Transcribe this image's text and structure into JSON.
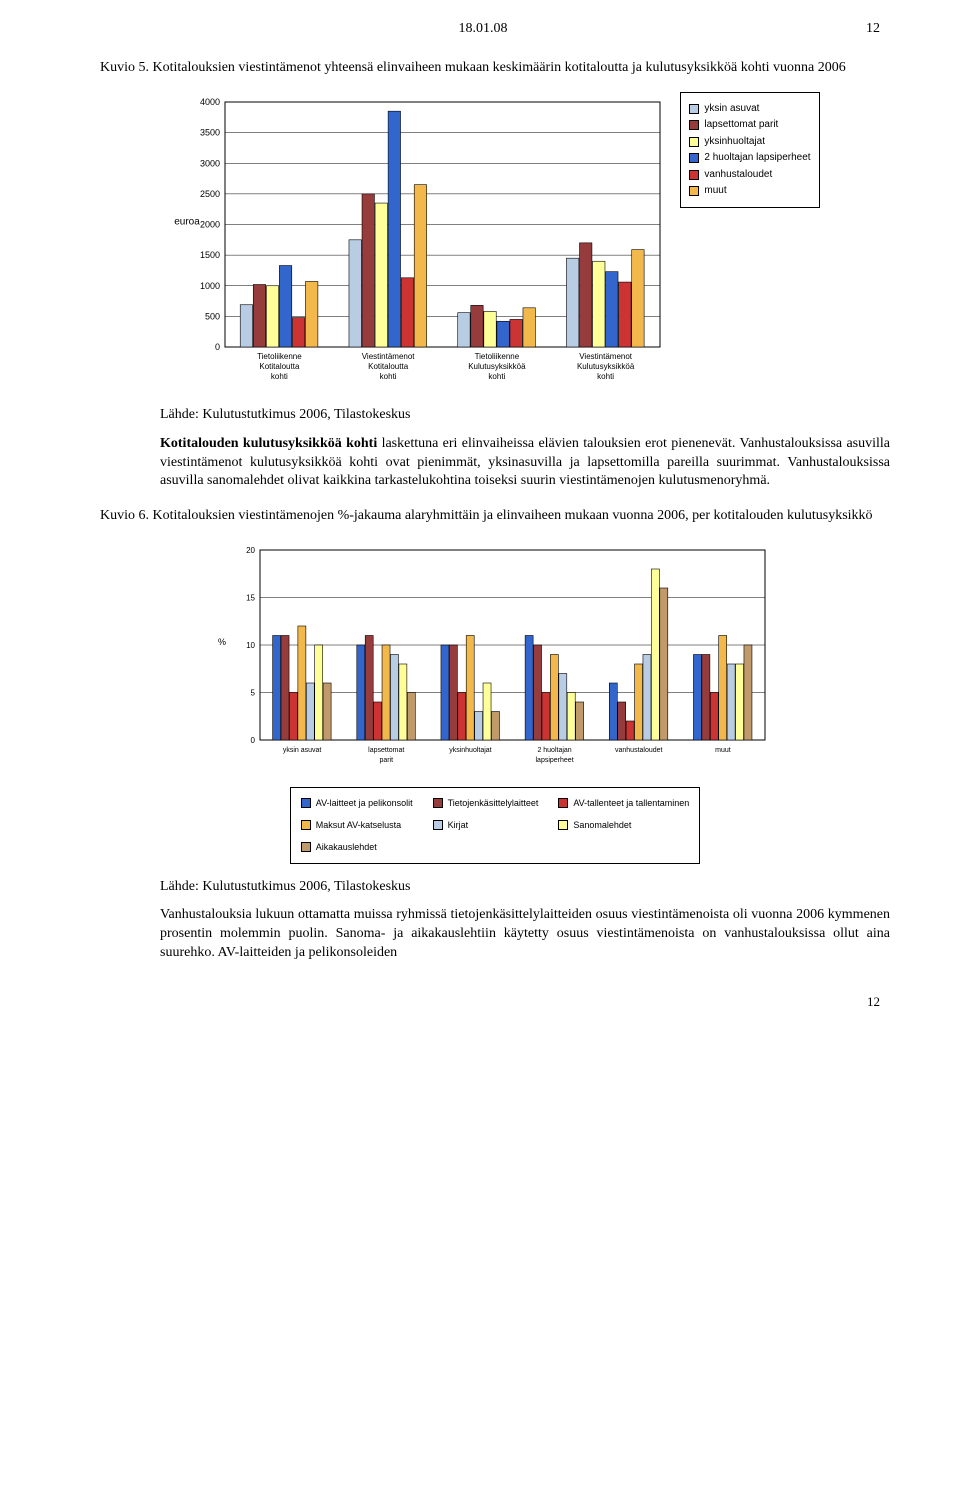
{
  "header": {
    "date": "18.01.08",
    "page_top": "12"
  },
  "footer": {
    "page_bottom": "12"
  },
  "chart1": {
    "caption": "Kuvio 5. Kotitalouksien viestintämenot yhteensä elinvaiheen mukaan keskimäärin kotitaloutta ja kulutusyksikköä kohti vuonna 2006",
    "type": "grouped-bar",
    "y_label": "euroa",
    "ylim": [
      0,
      4000
    ],
    "ytick_step": 500,
    "yticks": [
      "0",
      "500",
      "1000",
      "1500",
      "2000",
      "2500",
      "3000",
      "3500",
      "4000"
    ],
    "chart_border": "#000000",
    "grid_color": "#000000",
    "background_color": "#ffffff",
    "axis_fontsize": 9,
    "series_labels": [
      "yksin asuvat",
      "lapsettomat parit",
      "yksinhuoltajat",
      "2 huoltajan lapsiperheet",
      "vanhustaloudet",
      "muut"
    ],
    "series_colors": [
      "#b8cce4",
      "#963c3c",
      "#ffff99",
      "#3366cc",
      "#cc3333",
      "#f2b84b"
    ],
    "category_labels": [
      "Tietoliikenne Kotitaloutta kohti",
      "Viestintämenot Kotitaloutta kohti",
      "Tietoliikenne Kulutusyksikköä kohti",
      "Viestintämenot Kulutusyksikköä kohti"
    ],
    "data": [
      [
        690,
        1020,
        1000,
        1330,
        480,
        1070
      ],
      [
        1750,
        2500,
        2350,
        3850,
        1130,
        2650
      ],
      [
        560,
        680,
        580,
        420,
        450,
        640
      ],
      [
        1450,
        1700,
        1400,
        1230,
        1060,
        1590
      ]
    ],
    "bar_width": 0.12,
    "source": "Lähde: Kulutustutkimus 2006, Tilastokeskus",
    "paragraph_bold": "Kotitalouden kulutusyksikköä kohti",
    "paragraph": " laskettuna eri elinvaiheissa elävien talouksien erot pienenevät. Vanhustalouksissa asuvilla viestintämenot kulutusyksikköä kohti ovat pienimmät, yksinasuvilla ja lapsettomilla pareilla suurimmat. Vanhustalouksissa asuvilla sanomalehdet olivat kaikkina tarkastelukohtina toiseksi suurin viestintämenojen kulutusmenoryhmä."
  },
  "chart2": {
    "caption": "Kuvio 6. Kotitalouksien viestintämenojen %-jakauma alaryhmittäin ja elinvaiheen mukaan vuonna 2006, per kotitalouden kulutusyksikkö",
    "type": "grouped-bar",
    "y_label": "%",
    "ylim": [
      0,
      20
    ],
    "ytick_step": 5,
    "yticks": [
      "0",
      "5",
      "10",
      "15",
      "20"
    ],
    "chart_border": "#000000",
    "grid_color": "#000000",
    "background_color": "#ffffff",
    "axis_fontsize": 8,
    "category_labels": [
      "yksin asuvat",
      "lapsettomat parit",
      "yksinhuoltajat",
      "2 huoltajan lapsiperheet",
      "vanhustaloudet",
      "muut"
    ],
    "series_labels": [
      "AV-laitteet ja pelikonsolit",
      "Tietojenkäsittelylaitteet",
      "AV-tallenteet ja tallentaminen",
      "Maksut AV-katselusta",
      "Kirjat",
      "Sanomalehdet",
      "Aikakauslehdet"
    ],
    "series_colors": [
      "#3366cc",
      "#963c3c",
      "#cc3333",
      "#f2b84b",
      "#b8cce4",
      "#ffff99",
      "#c19a6b"
    ],
    "data": [
      [
        11,
        11,
        5,
        12,
        6,
        10,
        6
      ],
      [
        10,
        11,
        4,
        10,
        9,
        8,
        5
      ],
      [
        10,
        10,
        5,
        11,
        3,
        6,
        3
      ],
      [
        11,
        10,
        5,
        9,
        7,
        5,
        4
      ],
      [
        6,
        4,
        2,
        8,
        9,
        18,
        16
      ],
      [
        9,
        9,
        5,
        11,
        8,
        8,
        10
      ]
    ],
    "bar_width": 0.1,
    "source": "Lähde: Kulutustutkimus 2006, Tilastokeskus",
    "paragraph": "Vanhustalouksia lukuun ottamatta muissa ryhmissä tietojenkäsittelylaitteiden osuus viestintämenoista oli vuonna 2006 kymmenen prosentin molemmin puolin. Sanoma- ja aikakauslehtiin käytetty osuus viestintämenoista on vanhustalouksissa ollut aina suurehko. AV-laitteiden ja pelikonsoleiden"
  }
}
